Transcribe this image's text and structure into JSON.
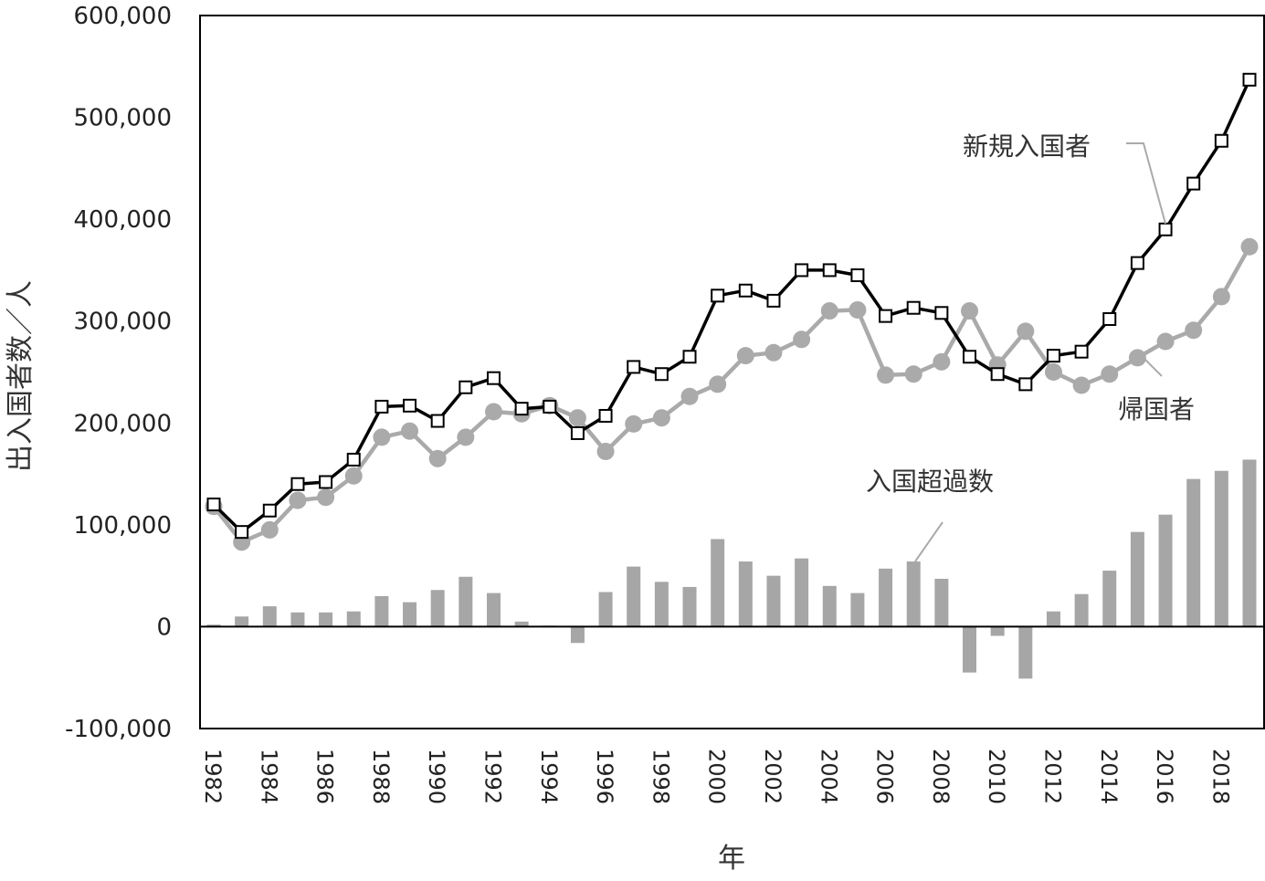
{
  "chart_data": {
    "type": "line+bar",
    "title": "",
    "xlabel": "年",
    "ylabel": "出入国者数／人",
    "ylim": [
      -100000,
      600000
    ],
    "yticks": [
      {
        "value": 600000,
        "label": "600,000"
      },
      {
        "value": 500000,
        "label": "500,000"
      },
      {
        "value": 400000,
        "label": "400,000"
      },
      {
        "value": 300000,
        "label": "300,000"
      },
      {
        "value": 200000,
        "label": "200,000"
      },
      {
        "value": 100000,
        "label": "100,000"
      },
      {
        "value": 0,
        "label": "0"
      },
      {
        "value": -100000,
        "label": "-100,000"
      }
    ],
    "xtick_labels": [
      "1982",
      "1984",
      "1986",
      "1988",
      "1990",
      "1992",
      "1994",
      "1996",
      "1998",
      "2000",
      "2002",
      "2004",
      "2006",
      "2008",
      "2010",
      "2012",
      "2014",
      "2016",
      "2018"
    ],
    "x": [
      1982,
      1983,
      1984,
      1985,
      1986,
      1987,
      1988,
      1989,
      1990,
      1991,
      1992,
      1993,
      1994,
      1995,
      1996,
      1997,
      1998,
      1999,
      2000,
      2001,
      2002,
      2003,
      2004,
      2005,
      2006,
      2007,
      2008,
      2009,
      2010,
      2011,
      2012,
      2013,
      2014,
      2015,
      2016,
      2017,
      2018,
      2019
    ],
    "grid": false,
    "series": [
      {
        "name": "新規入国者",
        "kind": "line",
        "marker": "square",
        "color": "#000000",
        "values": [
          120000,
          93000,
          114000,
          140000,
          142000,
          164000,
          216000,
          217000,
          202000,
          235000,
          244000,
          214000,
          216000,
          190000,
          207000,
          255000,
          248000,
          265000,
          325000,
          330000,
          320000,
          350000,
          350000,
          345000,
          305000,
          313000,
          308000,
          265000,
          248000,
          238000,
          266000,
          270000,
          302000,
          357000,
          390000,
          435000,
          477000,
          537000
        ]
      },
      {
        "name": "帰国者",
        "kind": "line",
        "marker": "circle",
        "color": "#aaaaaa",
        "values": [
          118000,
          83000,
          95000,
          124000,
          127000,
          148000,
          186000,
          192000,
          165000,
          186000,
          211000,
          209000,
          217000,
          205000,
          172000,
          199000,
          205000,
          226000,
          238000,
          266000,
          269000,
          282000,
          310000,
          311000,
          247000,
          248000,
          260000,
          310000,
          257000,
          290000,
          250000,
          237000,
          248000,
          264000,
          280000,
          291000,
          324000,
          373000
        ]
      },
      {
        "name": "入国超過数",
        "kind": "bar",
        "color": "#a6a6a6",
        "values": [
          2000,
          10000,
          20000,
          14000,
          14000,
          15000,
          30000,
          24000,
          36000,
          49000,
          33000,
          5000,
          1000,
          -16000,
          34000,
          59000,
          44000,
          39000,
          86000,
          64000,
          50000,
          67000,
          40000,
          33000,
          57000,
          64000,
          47000,
          -45000,
          -9000,
          -51000,
          15000,
          32000,
          55000,
          93000,
          110000,
          145000,
          153000,
          164000
        ]
      }
    ]
  },
  "annotations": {
    "new_entrants": "新規入国者",
    "returnees": "帰国者",
    "net_excess": "入国超過数"
  },
  "colors": {
    "negative_tick": "#e00000",
    "bar": "#a6a6a6",
    "returnee_line": "#aaaaaa",
    "entrant_line": "#000000",
    "leader": "#aaaaaa"
  }
}
